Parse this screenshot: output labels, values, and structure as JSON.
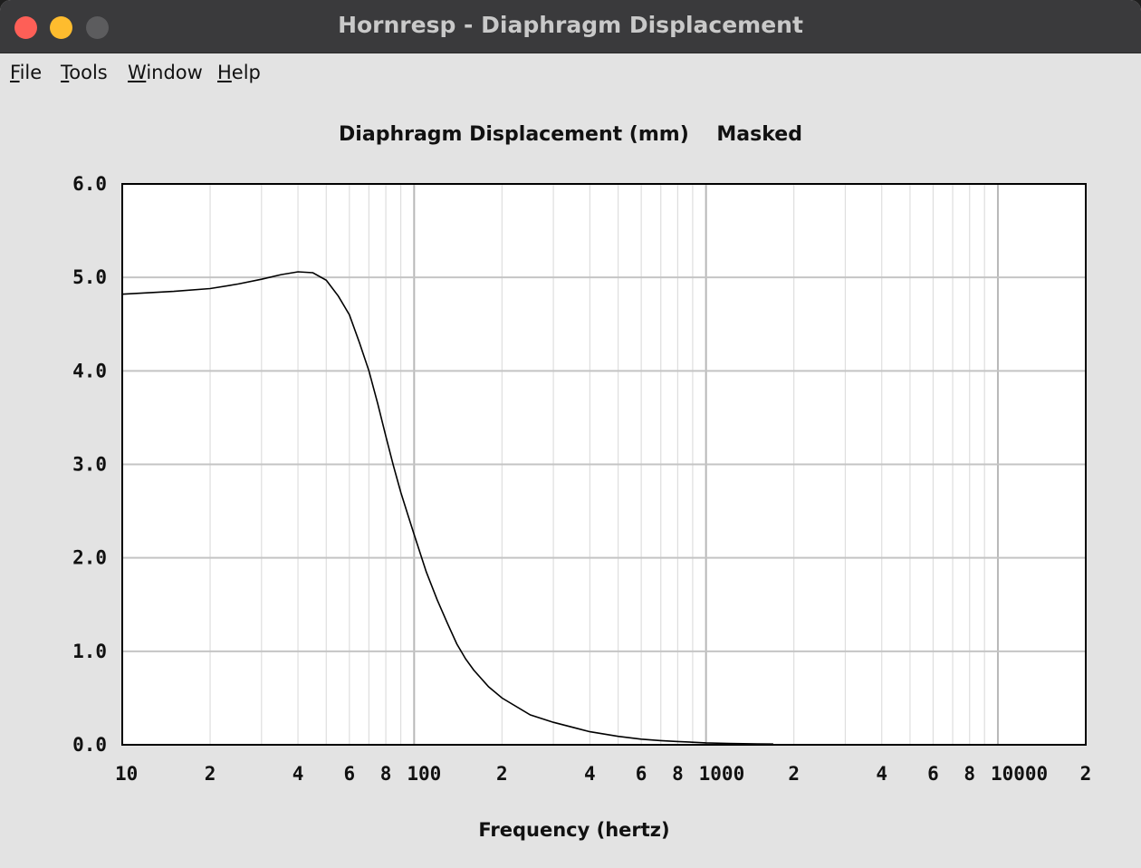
{
  "window": {
    "title": "Hornresp - Diaphragm Displacement"
  },
  "menu": {
    "items": [
      {
        "mnemonic": "F",
        "rest": "ile"
      },
      {
        "mnemonic": "T",
        "rest": "ools"
      },
      {
        "mnemonic": "W",
        "rest": "indow"
      },
      {
        "mnemonic": "H",
        "rest": "elp"
      }
    ]
  },
  "chart_data": {
    "type": "line",
    "title": "Diaphragm Displacement (mm)    Masked",
    "xlabel": "Frequency (hertz)",
    "ylabel": "",
    "xscale": "log",
    "xlim": [
      10,
      20000
    ],
    "ylim": [
      0,
      6
    ],
    "grid": true,
    "yticks": [
      "0.0",
      "1.0",
      "2.0",
      "3.0",
      "4.0",
      "5.0",
      "6.0"
    ],
    "xticks": [
      {
        "value": 10,
        "label": "10"
      },
      {
        "value": 20,
        "label": "2"
      },
      {
        "value": 40,
        "label": "4"
      },
      {
        "value": 60,
        "label": "6"
      },
      {
        "value": 80,
        "label": "8"
      },
      {
        "value": 100,
        "label": "100"
      },
      {
        "value": 200,
        "label": "2"
      },
      {
        "value": 400,
        "label": "4"
      },
      {
        "value": 600,
        "label": "6"
      },
      {
        "value": 800,
        "label": "8"
      },
      {
        "value": 1000,
        "label": "1000"
      },
      {
        "value": 2000,
        "label": "2"
      },
      {
        "value": 4000,
        "label": "4"
      },
      {
        "value": 6000,
        "label": "6"
      },
      {
        "value": 8000,
        "label": "8"
      },
      {
        "value": 10000,
        "label": "10000"
      },
      {
        "value": 20000,
        "label": "2"
      }
    ],
    "line_color": "#000000",
    "series": [
      {
        "x": [
          10,
          15,
          20,
          25,
          30,
          35,
          40,
          45,
          50,
          55,
          60,
          65,
          70,
          75,
          80,
          85,
          90,
          95,
          100,
          110,
          120,
          130,
          140,
          150,
          160,
          180,
          200,
          250,
          300,
          400,
          500,
          600,
          700,
          800,
          1000,
          1200,
          1500,
          1700
        ],
        "y": [
          4.82,
          4.85,
          4.88,
          4.93,
          4.98,
          5.03,
          5.06,
          5.05,
          4.97,
          4.8,
          4.6,
          4.3,
          4.0,
          3.65,
          3.3,
          2.98,
          2.7,
          2.47,
          2.25,
          1.85,
          1.55,
          1.3,
          1.08,
          0.92,
          0.8,
          0.62,
          0.5,
          0.32,
          0.24,
          0.14,
          0.09,
          0.06,
          0.045,
          0.035,
          0.02,
          0.015,
          0.01,
          0.008
        ]
      }
    ]
  }
}
